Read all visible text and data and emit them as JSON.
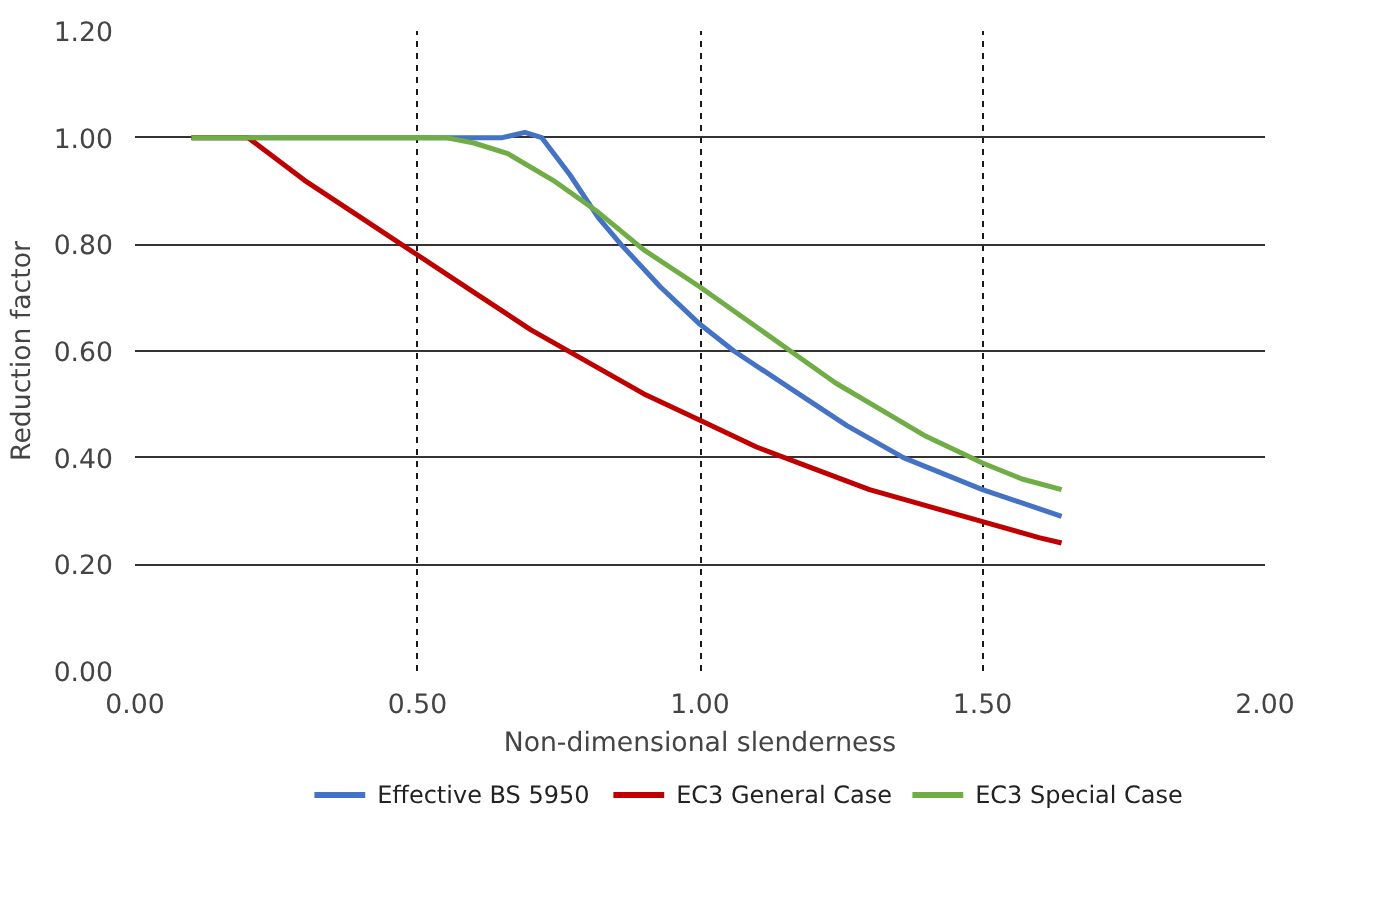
{
  "chart_data": {
    "type": "line",
    "xlabel": "Non-dimensional slenderness",
    "ylabel": "Reduction factor",
    "xlim": [
      0,
      2
    ],
    "ylim": [
      0,
      1.2
    ],
    "xticks": [
      {
        "value": 0,
        "label": "0.00"
      },
      {
        "value": 0.5,
        "label": "0.50"
      },
      {
        "value": 1,
        "label": "1.00"
      },
      {
        "value": 1.5,
        "label": "1.50"
      },
      {
        "value": 2,
        "label": "2.00"
      }
    ],
    "yticks": [
      {
        "value": 0,
        "label": "0.00"
      },
      {
        "value": 0.2,
        "label": "0.20"
      },
      {
        "value": 0.4,
        "label": "0.40"
      },
      {
        "value": 0.6,
        "label": "0.60"
      },
      {
        "value": 0.8,
        "label": "0.80"
      },
      {
        "value": 1,
        "label": "1.00"
      },
      {
        "value": 1.2,
        "label": "1.20"
      }
    ],
    "grid": true,
    "legend": "bottom",
    "marker": "none",
    "line_style": "solid",
    "series": [
      {
        "name": "Effective BS 5950",
        "color": "#4472c4",
        "x": [
          0.1,
          0.3,
          0.5,
          0.6,
          0.65,
          0.69,
          0.72,
          0.77,
          0.82,
          0.86,
          0.93,
          1.0,
          1.06,
          1.16,
          1.26,
          1.36,
          1.5,
          1.64
        ],
        "values": [
          1.0,
          1.0,
          1.0,
          1.0,
          1.0,
          1.01,
          1.0,
          0.93,
          0.85,
          0.8,
          0.72,
          0.65,
          0.6,
          0.53,
          0.46,
          0.4,
          0.34,
          0.29
        ]
      },
      {
        "name": "EC3 General Case",
        "color": "#c00000",
        "x": [
          0.1,
          0.2,
          0.3,
          0.4,
          0.5,
          0.6,
          0.7,
          0.8,
          0.9,
          1.0,
          1.1,
          1.2,
          1.3,
          1.4,
          1.5,
          1.6,
          1.64
        ],
        "values": [
          1.0,
          1.0,
          0.92,
          0.85,
          0.78,
          0.71,
          0.64,
          0.58,
          0.52,
          0.47,
          0.42,
          0.38,
          0.34,
          0.31,
          0.28,
          0.25,
          0.24
        ]
      },
      {
        "name": "EC3 Special Case",
        "color": "#70ad47",
        "x": [
          0.1,
          0.3,
          0.5,
          0.55,
          0.6,
          0.66,
          0.74,
          0.82,
          0.9,
          1.0,
          1.08,
          1.16,
          1.24,
          1.32,
          1.4,
          1.5,
          1.57,
          1.64
        ],
        "values": [
          1.0,
          1.0,
          1.0,
          1.0,
          0.99,
          0.97,
          0.92,
          0.86,
          0.79,
          0.72,
          0.66,
          0.6,
          0.54,
          0.49,
          0.44,
          0.39,
          0.36,
          0.34
        ]
      }
    ]
  }
}
